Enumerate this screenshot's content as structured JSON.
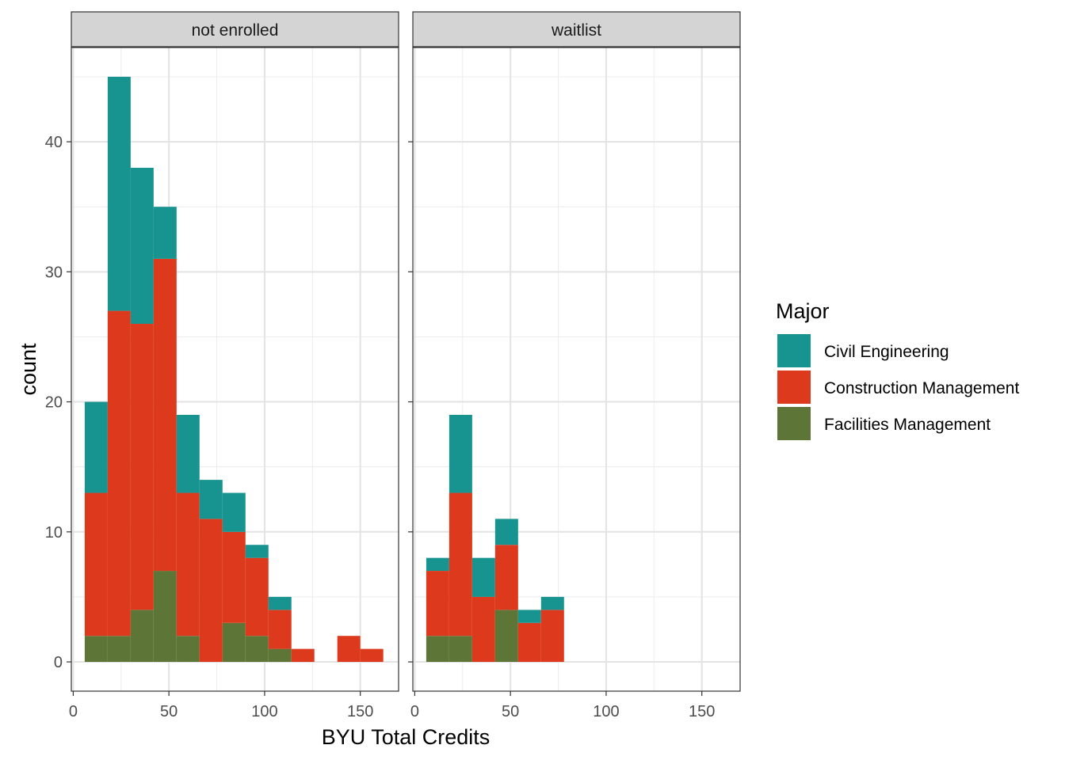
{
  "chart_data": {
    "type": "bar",
    "stacked": true,
    "facet_variable": "enrollment status",
    "xlabel": "BYU Total Credits",
    "ylabel": "count",
    "xlim": [
      -1,
      170
    ],
    "ylim": [
      -2.25,
      47.25
    ],
    "x_ticks": [
      0,
      50,
      100,
      150
    ],
    "y_ticks": [
      0,
      10,
      20,
      30,
      40
    ],
    "bin_width": 12,
    "grid": true,
    "legend": {
      "title": "Major",
      "position": "right"
    },
    "series": [
      {
        "name": "Civil Engineering",
        "color": "#179390"
      },
      {
        "name": "Construction Management",
        "color": "#DD391C"
      },
      {
        "name": "Facilities Management",
        "color": "#5D7638"
      }
    ],
    "panels": [
      {
        "label": "not enrolled",
        "bins": [
          {
            "x0": 6,
            "x1": 18,
            "values": [
              7,
              11,
              2
            ]
          },
          {
            "x0": 18,
            "x1": 30,
            "values": [
              18,
              25,
              2
            ]
          },
          {
            "x0": 30,
            "x1": 42,
            "values": [
              12,
              22,
              4
            ]
          },
          {
            "x0": 42,
            "x1": 54,
            "values": [
              4,
              24,
              7
            ]
          },
          {
            "x0": 54,
            "x1": 66,
            "values": [
              6,
              11,
              2
            ]
          },
          {
            "x0": 66,
            "x1": 78,
            "values": [
              3,
              11,
              0
            ]
          },
          {
            "x0": 78,
            "x1": 90,
            "values": [
              3,
              7,
              3
            ]
          },
          {
            "x0": 90,
            "x1": 102,
            "values": [
              1,
              6,
              2
            ]
          },
          {
            "x0": 102,
            "x1": 114,
            "values": [
              1,
              3,
              1
            ]
          },
          {
            "x0": 114,
            "x1": 126,
            "values": [
              0,
              1,
              0
            ]
          },
          {
            "x0": 126,
            "x1": 138,
            "values": [
              0,
              0,
              0
            ]
          },
          {
            "x0": 138,
            "x1": 150,
            "values": [
              0,
              2,
              0
            ]
          },
          {
            "x0": 150,
            "x1": 162,
            "values": [
              0,
              1,
              0
            ]
          }
        ]
      },
      {
        "label": "waitlist",
        "bins": [
          {
            "x0": 6,
            "x1": 18,
            "values": [
              1,
              5,
              2
            ]
          },
          {
            "x0": 18,
            "x1": 30,
            "values": [
              6,
              11,
              2
            ]
          },
          {
            "x0": 30,
            "x1": 42,
            "values": [
              3,
              5,
              0
            ]
          },
          {
            "x0": 42,
            "x1": 54,
            "values": [
              2,
              5,
              4
            ]
          },
          {
            "x0": 54,
            "x1": 66,
            "values": [
              1,
              3,
              0
            ]
          },
          {
            "x0": 66,
            "x1": 78,
            "values": [
              1,
              4,
              0
            ]
          }
        ]
      }
    ]
  }
}
